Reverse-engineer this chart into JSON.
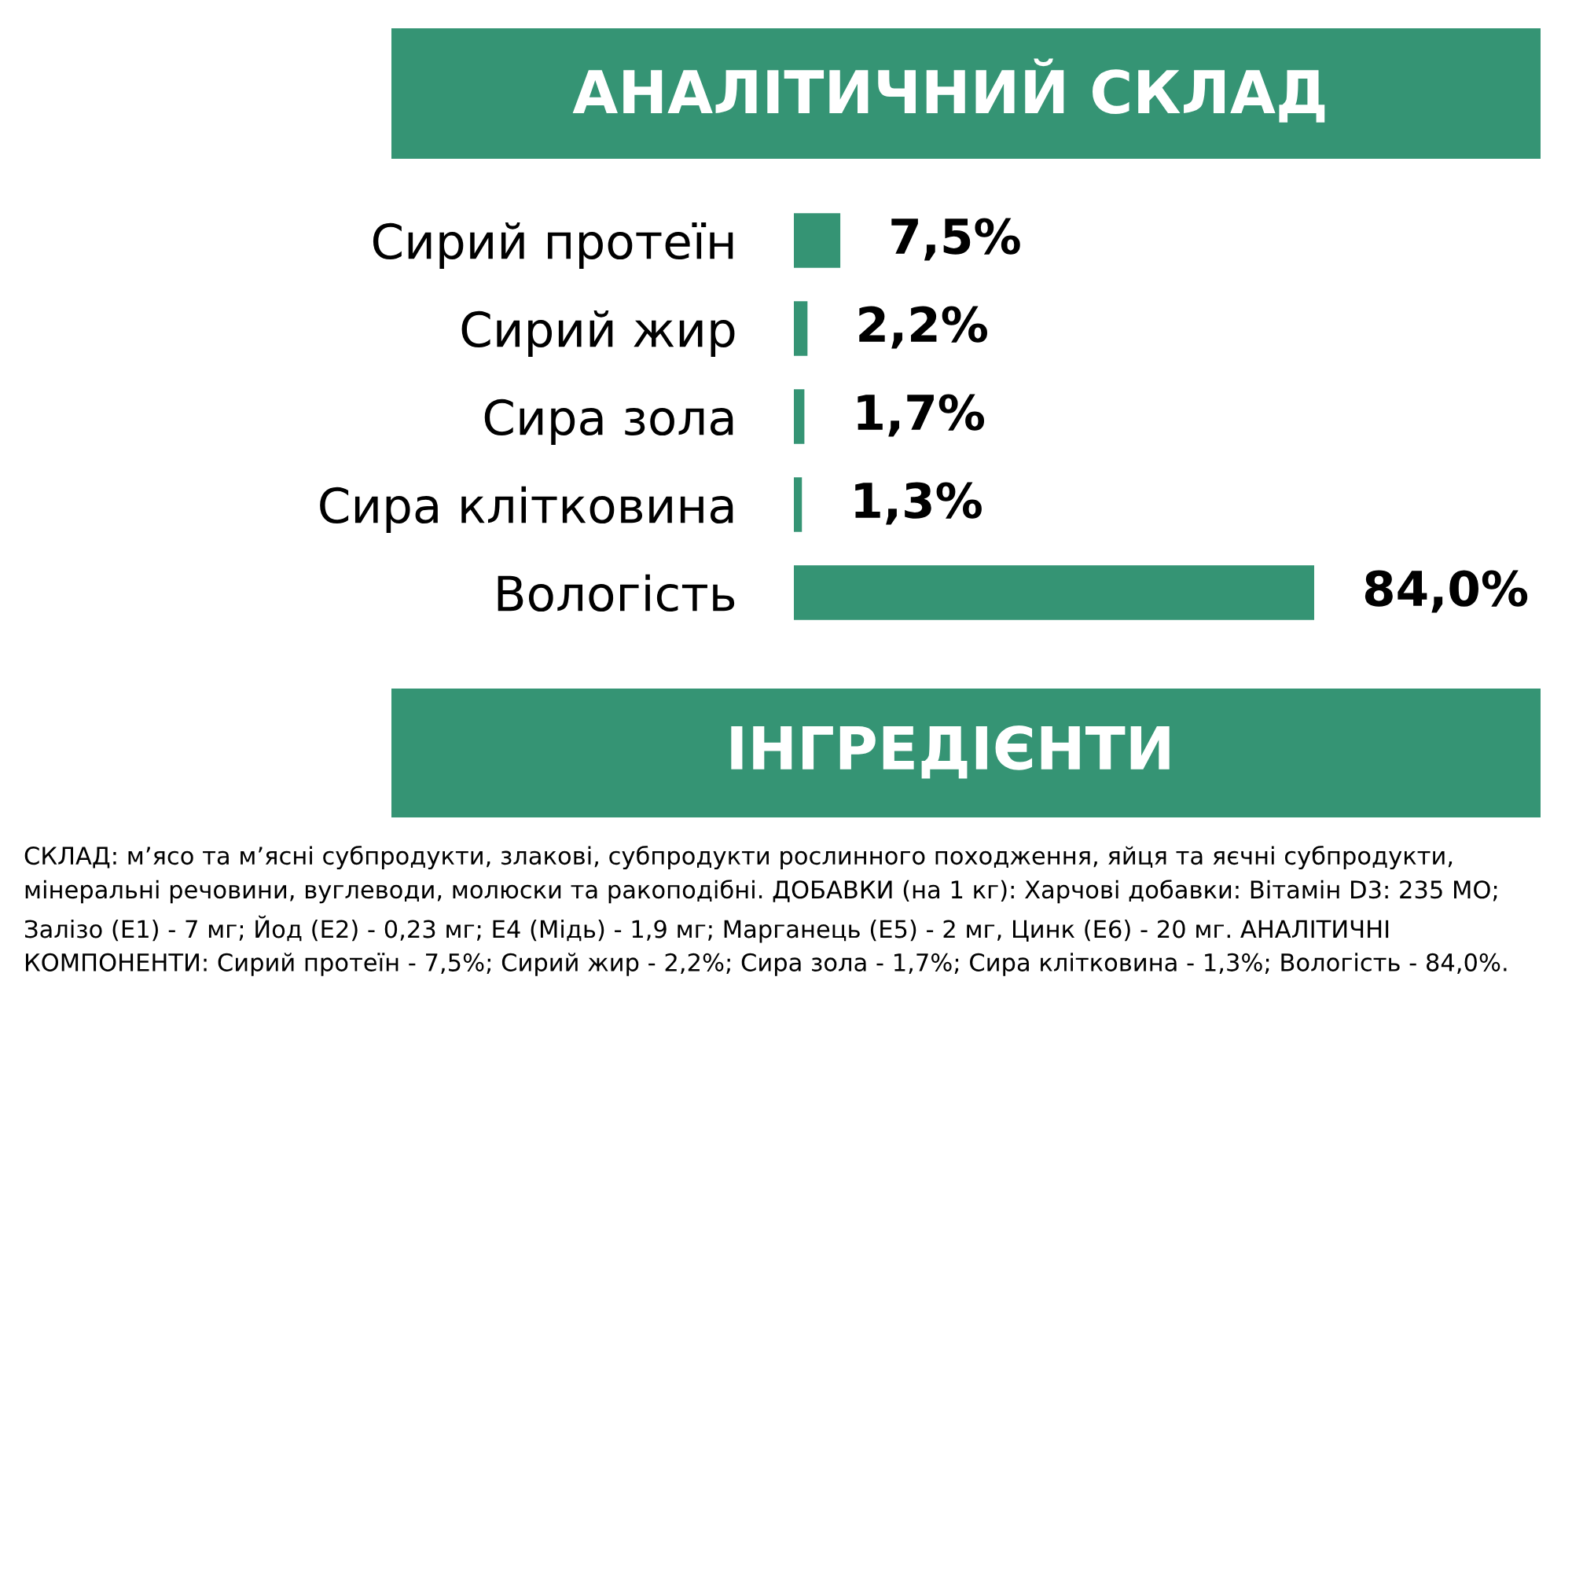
{
  "chart_data": {
    "type": "bar",
    "orientation": "horizontal",
    "title": "АНАЛІТИЧНИЙ СКЛАД",
    "categories": [
      "Сирий протеїн",
      "Сирий жир",
      "Сира зола",
      "Сира клітковина",
      "Вологість"
    ],
    "values": [
      7.5,
      2.2,
      1.7,
      1.3,
      84.0
    ],
    "value_labels": [
      "7,5%",
      "2,2%",
      "1,7%",
      "1,3%",
      "84,0%"
    ],
    "color": "#359474",
    "annotations": [
      "ІНГРЕДІЄНТИ",
      "СКЛАД: м’ясо та м’ясні субпродукти, злакові, субпродукти рослинного походження, яйця та яєчні субпродукти, мінеральні речовини, вуглеводи, молюски та ракоподібні. ДОБАВКИ (на 1 кг): Харчові добавки: Вітамін D3: 235 МО; Залізо (E1) - 7 мг; Йод (E2) - 0,23 мг; E4 (Мідь) - 1,9 мг; Марганець (E5) - 2 мг, Цинк (E6) - 20 мг. АНАЛІТИЧНІ КОМПОНЕНТИ: Сирий протеїн - 7,5%; Сирий жир - 2,2%; Сира зола - 1,7%; Сира клітковина - 1,3%; Вологість - 84,0%."
    ]
  }
}
